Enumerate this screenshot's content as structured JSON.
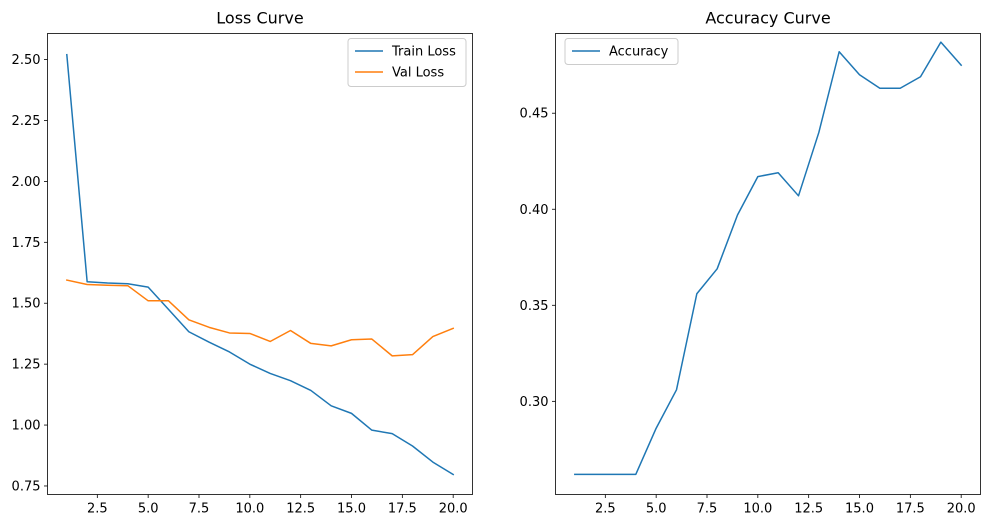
{
  "chart_data": [
    {
      "type": "line",
      "title": "Loss Curve",
      "xlabel": "",
      "ylabel": "",
      "xlim": [
        0.05,
        20.95
      ],
      "ylim": [
        0.715,
        2.607
      ],
      "xticks": [
        2.5,
        5.0,
        7.5,
        10.0,
        12.5,
        15.0,
        17.5,
        20.0
      ],
      "xtick_labels": [
        "2.5",
        "5.0",
        "7.5",
        "10.0",
        "12.5",
        "15.0",
        "17.5",
        "20.0"
      ],
      "yticks": [
        0.75,
        1.0,
        1.25,
        1.5,
        1.75,
        2.0,
        2.25,
        2.5
      ],
      "ytick_labels": [
        "0.75",
        "1.00",
        "1.25",
        "1.50",
        "1.75",
        "2.00",
        "2.25",
        "2.50"
      ],
      "grid": false,
      "legend": "upper right",
      "x": [
        1,
        2,
        3,
        4,
        5,
        6,
        7,
        8,
        9,
        10,
        11,
        12,
        13,
        14,
        15,
        16,
        17,
        18,
        19,
        20
      ],
      "series": [
        {
          "name": "Train Loss",
          "color": "#1f77b4",
          "values": [
            2.52,
            1.588,
            1.583,
            1.58,
            1.566,
            1.475,
            1.383,
            1.34,
            1.3,
            1.25,
            1.212,
            1.182,
            1.142,
            1.079,
            1.048,
            0.979,
            0.965,
            0.914,
            0.848,
            0.797
          ]
        },
        {
          "name": "Val Loss",
          "color": "#ff7f0e",
          "values": [
            1.595,
            1.577,
            1.574,
            1.572,
            1.51,
            1.51,
            1.432,
            1.401,
            1.378,
            1.376,
            1.343,
            1.388,
            1.335,
            1.325,
            1.35,
            1.353,
            1.284,
            1.289,
            1.363,
            1.397
          ]
        }
      ]
    },
    {
      "type": "line",
      "title": "Accuracy Curve",
      "xlabel": "",
      "ylabel": "",
      "xlim": [
        0.05,
        20.95
      ],
      "ylim": [
        0.2515,
        0.4915
      ],
      "xticks": [
        2.5,
        5.0,
        7.5,
        10.0,
        12.5,
        15.0,
        17.5,
        20.0
      ],
      "xtick_labels": [
        "2.5",
        "5.0",
        "7.5",
        "10.0",
        "12.5",
        "15.0",
        "17.5",
        "20.0"
      ],
      "yticks": [
        0.3,
        0.35,
        0.4,
        0.45
      ],
      "ytick_labels": [
        "0.30",
        "0.35",
        "0.40",
        "0.45"
      ],
      "grid": false,
      "legend": "upper left",
      "x": [
        1,
        2,
        3,
        4,
        5,
        6,
        7,
        8,
        9,
        10,
        11,
        12,
        13,
        14,
        15,
        16,
        17,
        18,
        19,
        20
      ],
      "series": [
        {
          "name": "Accuracy",
          "color": "#1f77b4",
          "values": [
            0.262,
            0.262,
            0.262,
            0.262,
            0.286,
            0.306,
            0.356,
            0.369,
            0.397,
            0.417,
            0.419,
            0.407,
            0.44,
            0.482,
            0.47,
            0.463,
            0.463,
            0.469,
            0.487,
            0.475
          ]
        }
      ]
    }
  ]
}
